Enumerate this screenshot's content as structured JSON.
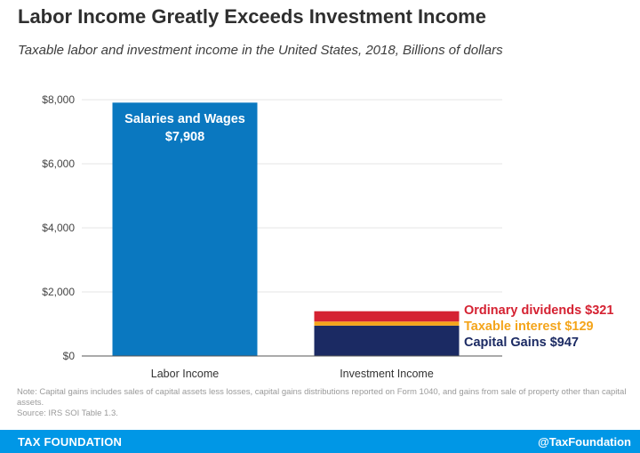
{
  "header": {
    "title": "Labor Income Greatly Exceeds Investment Income",
    "subtitle": "Taxable labor and investment income in the United States, 2018, Billions of dollars"
  },
  "chart_data": {
    "type": "bar",
    "stacked": true,
    "title": "Labor Income Greatly Exceeds Investment Income",
    "subtitle": "Taxable labor and investment income in the United States, 2018, Billions of dollars",
    "categories": [
      "Labor Income",
      "Investment Income"
    ],
    "ylim": [
      0,
      8000
    ],
    "yticks": [
      0,
      2000,
      4000,
      6000,
      8000
    ],
    "ytick_labels": [
      "$0",
      "$2,000",
      "$4,000",
      "$6,000",
      "$8,000"
    ],
    "grid": true,
    "series": [
      {
        "name": "Salaries and Wages",
        "values": [
          7908,
          0
        ],
        "color": "#0a78c0",
        "label": "$7,908",
        "label_color": "#ffffff"
      },
      {
        "name": "Capital Gains",
        "values": [
          0,
          947
        ],
        "color": "#1b2a63",
        "label": "$947",
        "label_color": "#1b2a63"
      },
      {
        "name": "Taxable interest",
        "values": [
          0,
          129
        ],
        "color": "#f4a51c",
        "label": "$129",
        "label_color": "#f4a51c"
      },
      {
        "name": "Ordinary dividends",
        "values": [
          0,
          321
        ],
        "color": "#d52232",
        "label": "$321",
        "label_color": "#d52232"
      }
    ]
  },
  "note": {
    "text": "Note: Capital gains includes sales of capital assets less losses, capital gains distributions reported on Form 1040, and gains from sale of property other than capital assets.",
    "source": "Source: IRS SOI Table 1.3."
  },
  "footer": {
    "brand": "TAX FOUNDATION",
    "handle": "@TaxFoundation"
  },
  "colors": {
    "footer_bg": "#0097e6",
    "grid": "#e6e6e6",
    "axis": "#555555"
  }
}
